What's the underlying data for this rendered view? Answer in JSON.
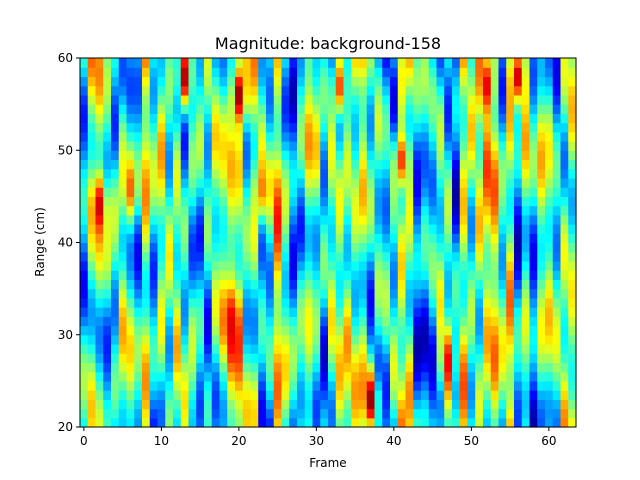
{
  "chart_data": {
    "type": "heatmap",
    "title": "Magnitude: background-158",
    "xlabel": "Frame",
    "ylabel": "Range (cm)",
    "xlim": [
      -0.5,
      63.5
    ],
    "ylim": [
      20,
      60
    ],
    "x_ticks": [
      0,
      10,
      20,
      30,
      40,
      50,
      60
    ],
    "y_ticks": [
      20,
      30,
      40,
      50,
      60
    ],
    "x_tick_labels": [
      "0",
      "10",
      "20",
      "30",
      "40",
      "50",
      "60"
    ],
    "y_tick_labels": [
      "20",
      "30",
      "40",
      "50",
      "60"
    ],
    "colormap": "jet",
    "grid": false,
    "value_range": [
      0,
      1
    ],
    "n_frames": 64,
    "range_step_cm": 2,
    "hotspots": [
      {
        "frame": 2,
        "range": 44,
        "value": 0.92
      },
      {
        "frame": 6,
        "range": 46,
        "value": 0.78
      },
      {
        "frame": 13,
        "range": 58,
        "value": 0.95
      },
      {
        "frame": 19,
        "range": 31,
        "value": 0.9
      },
      {
        "frame": 20,
        "range": 56,
        "value": 0.97
      },
      {
        "frame": 23,
        "range": 46,
        "value": 0.75
      },
      {
        "frame": 33,
        "range": 57,
        "value": 0.8
      },
      {
        "frame": 37,
        "range": 23,
        "value": 0.98
      },
      {
        "frame": 41,
        "range": 49,
        "value": 0.82
      },
      {
        "frame": 47,
        "range": 27,
        "value": 0.88
      },
      {
        "frame": 52,
        "range": 57,
        "value": 0.9
      },
      {
        "frame": 56,
        "range": 58,
        "value": 0.93
      }
    ]
  }
}
